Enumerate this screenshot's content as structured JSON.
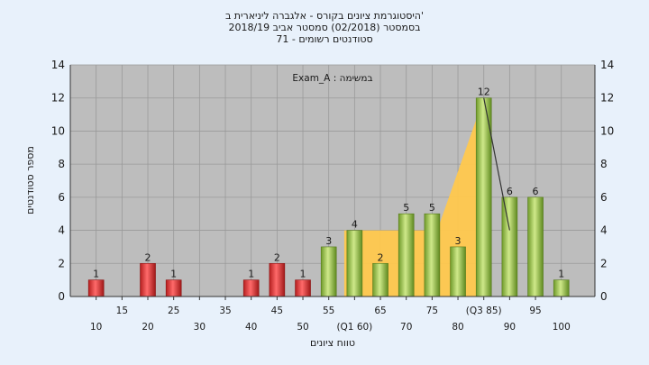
{
  "chart_data": {
    "type": "bar",
    "title": [
      "'היסטוגרמת ציונים בקורס - אלגברה ליניארית ב",
      "בסמסטר  (02/2018)  סמסטר אביב 2018/19",
      "סטודנטים רשומים - 71"
    ],
    "annotation": "במשימה : Exam_A",
    "xlabel": "טווח ציונים",
    "ylabel": "מספר סטודנטים",
    "ylim": [
      0,
      14
    ],
    "yticks": [
      0,
      2,
      4,
      6,
      8,
      10,
      12,
      14
    ],
    "grid": true,
    "xticks": [
      {
        "x": 10,
        "label": "10",
        "row": 2
      },
      {
        "x": 15,
        "label": "15",
        "row": 1
      },
      {
        "x": 20,
        "label": "20",
        "row": 2
      },
      {
        "x": 25,
        "label": "25",
        "row": 1
      },
      {
        "x": 30,
        "label": "30",
        "row": 2
      },
      {
        "x": 35,
        "label": "35",
        "row": 1
      },
      {
        "x": 40,
        "label": "40",
        "row": 2
      },
      {
        "x": 45,
        "label": "45",
        "row": 1
      },
      {
        "x": 50,
        "label": "50",
        "row": 2
      },
      {
        "x": 55,
        "label": "55",
        "row": 1
      },
      {
        "x": 60,
        "label": "(Q1 60)",
        "row": 2
      },
      {
        "x": 65,
        "label": "65",
        "row": 1
      },
      {
        "x": 70,
        "label": "70",
        "row": 2
      },
      {
        "x": 75,
        "label": "75",
        "row": 1
      },
      {
        "x": 80,
        "label": "80",
        "row": 2
      },
      {
        "x": 85,
        "label": "(Q3 85)",
        "row": 1
      },
      {
        "x": 90,
        "label": "90",
        "row": 2
      },
      {
        "x": 95,
        "label": "95",
        "row": 1
      },
      {
        "x": 100,
        "label": "100",
        "row": 2
      }
    ],
    "bars": [
      {
        "x": 10,
        "value": 1,
        "label": "1",
        "color": "red"
      },
      {
        "x": 20,
        "value": 2,
        "label": "2",
        "color": "red"
      },
      {
        "x": 25,
        "value": 1,
        "label": "1",
        "color": "red"
      },
      {
        "x": 40,
        "value": 1,
        "label": "1",
        "color": "red"
      },
      {
        "x": 45,
        "value": 2,
        "label": "2",
        "color": "red"
      },
      {
        "x": 50,
        "value": 1,
        "label": "1",
        "color": "red"
      },
      {
        "x": 55,
        "value": 3,
        "label": "3",
        "color": "green"
      },
      {
        "x": 60,
        "value": 4,
        "label": "4",
        "color": "green"
      },
      {
        "x": 65,
        "value": 2,
        "label": "2",
        "color": "green"
      },
      {
        "x": 70,
        "value": 5,
        "label": "5",
        "color": "green"
      },
      {
        "x": 75,
        "value": 5,
        "label": "5",
        "color": "green"
      },
      {
        "x": 80,
        "value": 3,
        "label": "3",
        "color": "green"
      },
      {
        "x": 85,
        "value": 12,
        "label": "12",
        "color": "green"
      },
      {
        "x": 90,
        "value": 6,
        "label": "6",
        "color": "green"
      },
      {
        "x": 95,
        "value": 6,
        "label": "6",
        "color": "green"
      },
      {
        "x": 100,
        "value": 1,
        "label": "1",
        "color": "green"
      }
    ],
    "area": {
      "points": [
        [
          58,
          4
        ],
        [
          76,
          4
        ],
        [
          85,
          12
        ],
        [
          85,
          0
        ],
        [
          58,
          0
        ]
      ]
    },
    "trend_line": {
      "points": [
        [
          85,
          12
        ],
        [
          90,
          4
        ]
      ]
    },
    "colors": {
      "background": "#e8f1fb",
      "plot_background": "#bdbdbd",
      "grid": "#9a9a9a",
      "red_bar": "#e53939",
      "green_bar": "#9fc94a",
      "area": "#ffc84d"
    }
  }
}
